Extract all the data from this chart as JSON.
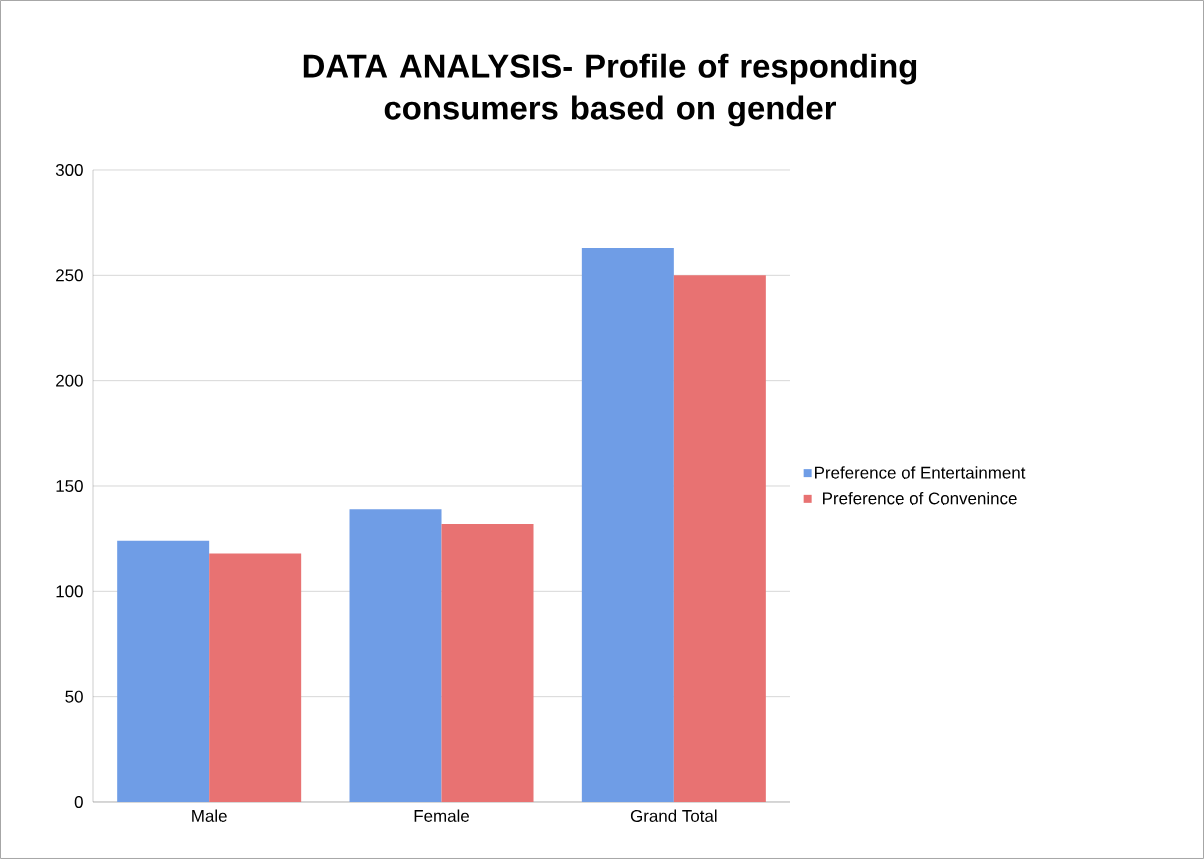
{
  "chart_data": {
    "type": "bar",
    "title": "DATA ANALYSIS- Profile of responding consumers based on gender",
    "categories": [
      "Male",
      "Female",
      "Grand Total"
    ],
    "series": [
      {
        "name": "Preference of Entertainment",
        "color": "#6f9de6",
        "values": [
          124,
          139,
          263
        ]
      },
      {
        "name": "Preference of Convenince",
        "color": "#e87272",
        "values": [
          118,
          132,
          250
        ]
      }
    ],
    "ylim": [
      0,
      300
    ],
    "yticks": [
      0,
      50,
      100,
      150,
      200,
      250,
      300
    ],
    "grid": "y",
    "legend": "right"
  }
}
